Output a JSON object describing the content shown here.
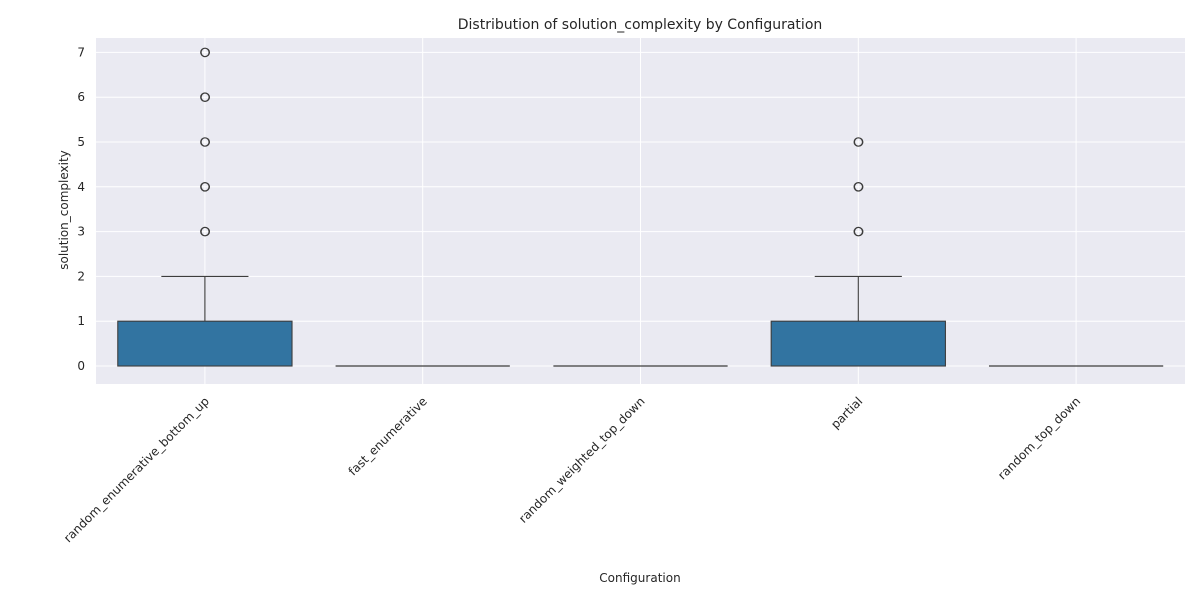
{
  "chart_data": {
    "type": "box",
    "title": "Distribution of solution_complexity by Configuration",
    "xlabel": "Configuration",
    "ylabel": "solution_complexity",
    "categories": [
      "random_enumerative_bottom_up",
      "fast_enumerative",
      "random_weighted_top_down",
      "partial",
      "random_top_down"
    ],
    "boxes": [
      {
        "category": "random_enumerative_bottom_up",
        "whisker_low": 0,
        "q1": 0,
        "median": 0,
        "q3": 1,
        "whisker_high": 2,
        "outliers": [
          3,
          4,
          5,
          6,
          7
        ]
      },
      {
        "category": "fast_enumerative",
        "whisker_low": 0,
        "q1": 0,
        "median": 0,
        "q3": 0,
        "whisker_high": 0,
        "outliers": []
      },
      {
        "category": "random_weighted_top_down",
        "whisker_low": 0,
        "q1": 0,
        "median": 0,
        "q3": 0,
        "whisker_high": 0,
        "outliers": []
      },
      {
        "category": "partial",
        "whisker_low": 0,
        "q1": 0,
        "median": 0,
        "q3": 1,
        "whisker_high": 2,
        "outliers": [
          3,
          4,
          5
        ]
      },
      {
        "category": "random_top_down",
        "whisker_low": 0,
        "q1": 0,
        "median": 0,
        "q3": 0,
        "whisker_high": 0,
        "outliers": []
      }
    ],
    "yticks": [
      0,
      1,
      2,
      3,
      4,
      5,
      6,
      7
    ],
    "ylim": [
      -0.35,
      7.35
    ],
    "grid": true,
    "colors": {
      "box_fill": "#3274a1",
      "box_edge": "#3d3d3d",
      "panel_bg": "#eaeaf2",
      "grid": "#ffffff"
    }
  }
}
